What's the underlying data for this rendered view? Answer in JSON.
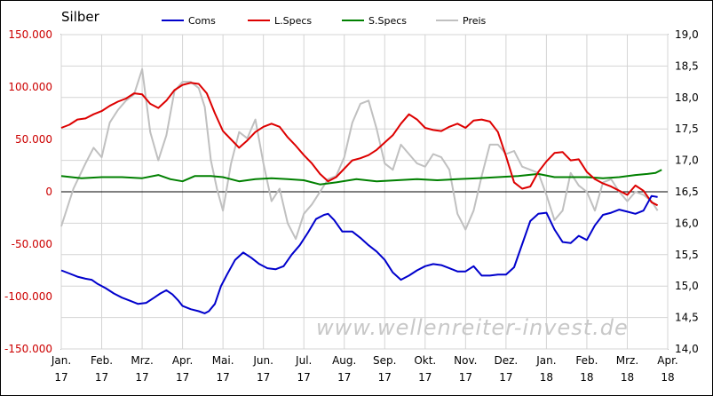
{
  "chart_data": {
    "type": "line",
    "title": "Silber",
    "watermark": "www.wellenreiter-invest.de",
    "x_labels": [
      {
        "month": "Jan.",
        "year": "17"
      },
      {
        "month": "Feb.",
        "year": "17"
      },
      {
        "month": "Mrz.",
        "year": "17"
      },
      {
        "month": "Apr.",
        "year": "17"
      },
      {
        "month": "Mai.",
        "year": "17"
      },
      {
        "month": "Jun.",
        "year": "17"
      },
      {
        "month": "Jul.",
        "year": "17"
      },
      {
        "month": "Aug.",
        "year": "17"
      },
      {
        "month": "Sep.",
        "year": "17"
      },
      {
        "month": "Okt.",
        "year": "17"
      },
      {
        "month": "Nov.",
        "year": "17"
      },
      {
        "month": "Dez.",
        "year": "17"
      },
      {
        "month": "Jan.",
        "year": "18"
      },
      {
        "month": "Feb.",
        "year": "18"
      },
      {
        "month": "Mrz.",
        "year": "18"
      },
      {
        "month": "Apr.",
        "year": "18"
      }
    ],
    "y_left": {
      "range": [
        -150000,
        150000
      ],
      "ticks": [
        150000,
        100000,
        50000,
        0,
        -50000,
        -100000,
        -150000
      ],
      "tick_labels": [
        "150.000",
        "100.000",
        "50.000",
        "0",
        "-50.000",
        "-100.000",
        "-150.000"
      ],
      "color": "#cc0000"
    },
    "y_right": {
      "range": [
        14.0,
        19.0
      ],
      "ticks": [
        19.0,
        18.5,
        18.0,
        17.5,
        17.0,
        16.5,
        16.0,
        15.5,
        15.0,
        14.5,
        14.0
      ],
      "tick_labels": [
        "19,0",
        "18,5",
        "18,0",
        "17,5",
        "17,0",
        "16,5",
        "16,0",
        "15,5",
        "15,0",
        "14,5",
        "14,0"
      ]
    },
    "grid": true,
    "legend_position": "top",
    "series": [
      {
        "name": "Coms",
        "axis": "left",
        "color": "#0000cc",
        "values": [
          [
            0.0,
            -75000
          ],
          [
            0.2,
            -78000
          ],
          [
            0.4,
            -81000
          ],
          [
            0.6,
            -83000
          ],
          [
            0.75,
            -84000
          ],
          [
            0.9,
            -88000
          ],
          [
            1.1,
            -92000
          ],
          [
            1.3,
            -97000
          ],
          [
            1.5,
            -101000
          ],
          [
            1.7,
            -104000
          ],
          [
            1.9,
            -107000
          ],
          [
            2.1,
            -106000
          ],
          [
            2.3,
            -101000
          ],
          [
            2.45,
            -97000
          ],
          [
            2.6,
            -94000
          ],
          [
            2.75,
            -98000
          ],
          [
            2.9,
            -104000
          ],
          [
            3.0,
            -109000
          ],
          [
            3.2,
            -112000
          ],
          [
            3.4,
            -114000
          ],
          [
            3.55,
            -116000
          ],
          [
            3.65,
            -114000
          ],
          [
            3.8,
            -107000
          ],
          [
            3.95,
            -90000
          ],
          [
            4.1,
            -79000
          ],
          [
            4.3,
            -65000
          ],
          [
            4.5,
            -58000
          ],
          [
            4.7,
            -63000
          ],
          [
            4.9,
            -69000
          ],
          [
            5.1,
            -73000
          ],
          [
            5.3,
            -74000
          ],
          [
            5.5,
            -71000
          ],
          [
            5.7,
            -60000
          ],
          [
            5.9,
            -51000
          ],
          [
            6.1,
            -39000
          ],
          [
            6.3,
            -26000
          ],
          [
            6.5,
            -22000
          ],
          [
            6.6,
            -21000
          ],
          [
            6.75,
            -27000
          ],
          [
            6.95,
            -38000
          ],
          [
            7.2,
            -38000
          ],
          [
            7.4,
            -44000
          ],
          [
            7.6,
            -51000
          ],
          [
            7.8,
            -57000
          ],
          [
            8.0,
            -65000
          ],
          [
            8.2,
            -77000
          ],
          [
            8.4,
            -84000
          ],
          [
            8.6,
            -80000
          ],
          [
            8.8,
            -75000
          ],
          [
            9.0,
            -71000
          ],
          [
            9.2,
            -69000
          ],
          [
            9.4,
            -70000
          ],
          [
            9.6,
            -73000
          ],
          [
            9.8,
            -76000
          ],
          [
            10.0,
            -76000
          ],
          [
            10.2,
            -71000
          ],
          [
            10.4,
            -80000
          ],
          [
            10.6,
            -80000
          ],
          [
            10.8,
            -79000
          ],
          [
            11.0,
            -79000
          ],
          [
            11.2,
            -72000
          ],
          [
            11.4,
            -50000
          ],
          [
            11.6,
            -28000
          ],
          [
            11.8,
            -21000
          ],
          [
            12.0,
            -20000
          ],
          [
            12.2,
            -36000
          ],
          [
            12.4,
            -48000
          ],
          [
            12.6,
            -49000
          ],
          [
            12.8,
            -42000
          ],
          [
            13.0,
            -46000
          ],
          [
            13.2,
            -32000
          ],
          [
            13.4,
            -22000
          ],
          [
            13.6,
            -20000
          ],
          [
            13.8,
            -17000
          ],
          [
            14.0,
            -19000
          ],
          [
            14.2,
            -21000
          ],
          [
            14.4,
            -18000
          ],
          [
            14.6,
            -4000
          ],
          [
            14.75,
            -5000
          ]
        ]
      },
      {
        "name": "L.Specs",
        "axis": "left",
        "color": "#dd0000",
        "values": [
          [
            0.0,
            61000
          ],
          [
            0.2,
            64000
          ],
          [
            0.4,
            69000
          ],
          [
            0.6,
            70000
          ],
          [
            0.8,
            74000
          ],
          [
            1.0,
            77000
          ],
          [
            1.2,
            82000
          ],
          [
            1.4,
            86000
          ],
          [
            1.6,
            89000
          ],
          [
            1.8,
            94000
          ],
          [
            2.0,
            93000
          ],
          [
            2.2,
            84000
          ],
          [
            2.4,
            80000
          ],
          [
            2.6,
            87000
          ],
          [
            2.8,
            97000
          ],
          [
            3.0,
            102000
          ],
          [
            3.2,
            104000
          ],
          [
            3.4,
            103000
          ],
          [
            3.6,
            94000
          ],
          [
            3.8,
            75000
          ],
          [
            4.0,
            58000
          ],
          [
            4.2,
            50000
          ],
          [
            4.4,
            42000
          ],
          [
            4.6,
            49000
          ],
          [
            4.8,
            57000
          ],
          [
            5.0,
            62000
          ],
          [
            5.2,
            65000
          ],
          [
            5.4,
            62000
          ],
          [
            5.6,
            52000
          ],
          [
            5.8,
            44000
          ],
          [
            6.0,
            35000
          ],
          [
            6.2,
            27000
          ],
          [
            6.4,
            17000
          ],
          [
            6.6,
            10000
          ],
          [
            6.8,
            14000
          ],
          [
            7.0,
            22000
          ],
          [
            7.2,
            30000
          ],
          [
            7.4,
            32000
          ],
          [
            7.6,
            35000
          ],
          [
            7.8,
            40000
          ],
          [
            8.0,
            47000
          ],
          [
            8.2,
            54000
          ],
          [
            8.4,
            65000
          ],
          [
            8.6,
            74000
          ],
          [
            8.8,
            69000
          ],
          [
            9.0,
            61000
          ],
          [
            9.2,
            59000
          ],
          [
            9.4,
            58000
          ],
          [
            9.6,
            62000
          ],
          [
            9.8,
            65000
          ],
          [
            10.0,
            61000
          ],
          [
            10.2,
            68000
          ],
          [
            10.4,
            69000
          ],
          [
            10.6,
            67000
          ],
          [
            10.8,
            57000
          ],
          [
            11.0,
            34000
          ],
          [
            11.2,
            9000
          ],
          [
            11.4,
            3000
          ],
          [
            11.6,
            5000
          ],
          [
            11.8,
            19000
          ],
          [
            12.0,
            29000
          ],
          [
            12.2,
            37000
          ],
          [
            12.4,
            38000
          ],
          [
            12.6,
            30000
          ],
          [
            12.8,
            31000
          ],
          [
            13.0,
            19000
          ],
          [
            13.2,
            12000
          ],
          [
            13.4,
            8000
          ],
          [
            13.6,
            5000
          ],
          [
            13.8,
            1000
          ],
          [
            14.0,
            -3000
          ],
          [
            14.2,
            6000
          ],
          [
            14.4,
            1000
          ],
          [
            14.6,
            -10000
          ],
          [
            14.75,
            -13000
          ]
        ]
      },
      {
        "name": "S.Specs",
        "axis": "left",
        "color": "#008000",
        "values": [
          [
            0.0,
            15000
          ],
          [
            0.5,
            13000
          ],
          [
            1.0,
            14000
          ],
          [
            1.5,
            14000
          ],
          [
            2.0,
            13000
          ],
          [
            2.4,
            16000
          ],
          [
            2.7,
            12000
          ],
          [
            3.0,
            10000
          ],
          [
            3.3,
            15000
          ],
          [
            3.7,
            15000
          ],
          [
            4.0,
            14000
          ],
          [
            4.4,
            10000
          ],
          [
            4.8,
            12000
          ],
          [
            5.2,
            13000
          ],
          [
            5.6,
            12000
          ],
          [
            6.0,
            11000
          ],
          [
            6.4,
            7000
          ],
          [
            6.8,
            9000
          ],
          [
            7.3,
            12000
          ],
          [
            7.8,
            10000
          ],
          [
            8.3,
            11000
          ],
          [
            8.8,
            12000
          ],
          [
            9.3,
            11000
          ],
          [
            9.8,
            12000
          ],
          [
            10.3,
            13000
          ],
          [
            10.8,
            14000
          ],
          [
            11.3,
            15000
          ],
          [
            11.8,
            17000
          ],
          [
            12.2,
            14000
          ],
          [
            12.6,
            14000
          ],
          [
            13.0,
            14000
          ],
          [
            13.4,
            13000
          ],
          [
            13.8,
            14000
          ],
          [
            14.2,
            16000
          ],
          [
            14.5,
            17000
          ],
          [
            14.7,
            18000
          ],
          [
            14.85,
            21000
          ]
        ]
      },
      {
        "name": "Preis",
        "axis": "right",
        "color": "#c0c0c0",
        "values": [
          [
            0.0,
            15.95
          ],
          [
            0.3,
            16.55
          ],
          [
            0.6,
            16.95
          ],
          [
            0.8,
            17.2
          ],
          [
            1.0,
            17.05
          ],
          [
            1.2,
            17.6
          ],
          [
            1.4,
            17.8
          ],
          [
            1.6,
            17.95
          ],
          [
            1.8,
            18.05
          ],
          [
            2.0,
            18.45
          ],
          [
            2.2,
            17.45
          ],
          [
            2.4,
            17.0
          ],
          [
            2.6,
            17.4
          ],
          [
            2.8,
            18.1
          ],
          [
            3.0,
            18.25
          ],
          [
            3.2,
            18.25
          ],
          [
            3.4,
            18.15
          ],
          [
            3.55,
            17.85
          ],
          [
            3.7,
            17.0
          ],
          [
            3.85,
            16.55
          ],
          [
            4.0,
            16.2
          ],
          [
            4.2,
            16.95
          ],
          [
            4.4,
            17.45
          ],
          [
            4.6,
            17.35
          ],
          [
            4.8,
            17.65
          ],
          [
            5.0,
            16.95
          ],
          [
            5.2,
            16.35
          ],
          [
            5.4,
            16.55
          ],
          [
            5.6,
            16.0
          ],
          [
            5.8,
            15.75
          ],
          [
            6.0,
            16.15
          ],
          [
            6.2,
            16.3
          ],
          [
            6.4,
            16.5
          ],
          [
            6.6,
            16.7
          ],
          [
            6.8,
            16.75
          ],
          [
            7.0,
            17.05
          ],
          [
            7.2,
            17.6
          ],
          [
            7.4,
            17.9
          ],
          [
            7.6,
            17.95
          ],
          [
            7.8,
            17.5
          ],
          [
            8.0,
            16.95
          ],
          [
            8.2,
            16.85
          ],
          [
            8.4,
            17.25
          ],
          [
            8.6,
            17.1
          ],
          [
            8.8,
            16.95
          ],
          [
            9.0,
            16.9
          ],
          [
            9.2,
            17.1
          ],
          [
            9.4,
            17.05
          ],
          [
            9.6,
            16.85
          ],
          [
            9.8,
            16.15
          ],
          [
            10.0,
            15.9
          ],
          [
            10.2,
            16.2
          ],
          [
            10.4,
            16.75
          ],
          [
            10.6,
            17.25
          ],
          [
            10.8,
            17.25
          ],
          [
            11.0,
            17.1
          ],
          [
            11.2,
            17.15
          ],
          [
            11.4,
            16.9
          ],
          [
            11.6,
            16.85
          ],
          [
            11.8,
            16.8
          ],
          [
            12.0,
            16.45
          ],
          [
            12.2,
            16.05
          ],
          [
            12.4,
            16.2
          ],
          [
            12.6,
            16.8
          ],
          [
            12.8,
            16.6
          ],
          [
            13.0,
            16.5
          ],
          [
            13.2,
            16.2
          ],
          [
            13.4,
            16.65
          ],
          [
            13.6,
            16.7
          ],
          [
            13.8,
            16.5
          ],
          [
            14.0,
            16.35
          ],
          [
            14.2,
            16.5
          ],
          [
            14.4,
            16.45
          ],
          [
            14.6,
            16.35
          ],
          [
            14.75,
            16.2
          ]
        ]
      }
    ]
  }
}
